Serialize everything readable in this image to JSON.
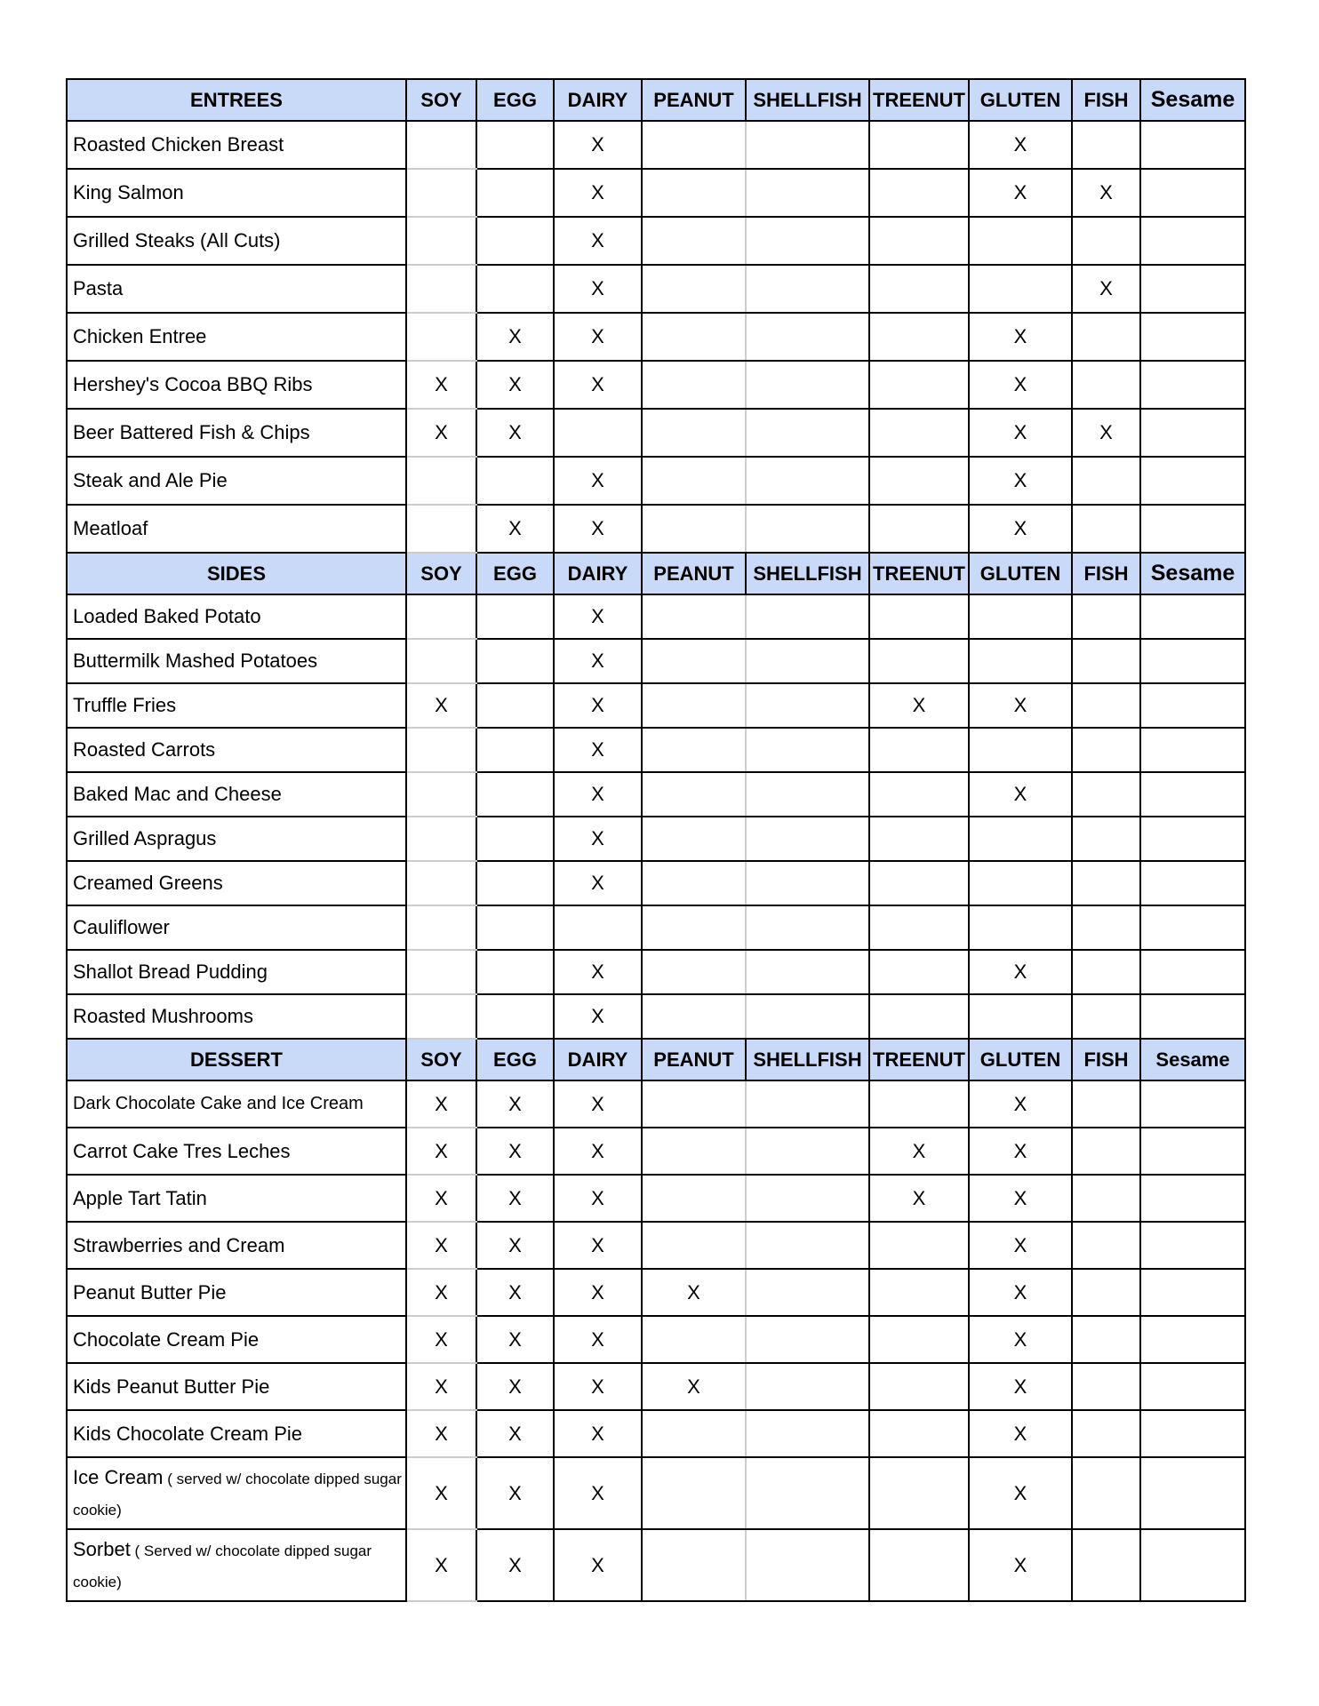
{
  "columns": [
    "SOY",
    "EGG",
    "DAIRY",
    "PEANUT",
    "SHELLFISH",
    "TREENUT",
    "GLUTEN",
    "FISH",
    "Sesame"
  ],
  "mark": "X",
  "sections": [
    {
      "id": "entrees",
      "title": "ENTREES",
      "rows": [
        {
          "name": "Roasted Chicken Breast",
          "marks": [
            "",
            "",
            "X",
            "",
            "",
            "",
            "X",
            "",
            ""
          ]
        },
        {
          "name": "King Salmon",
          "marks": [
            "",
            "",
            "X",
            "",
            "",
            "",
            "X",
            "X",
            ""
          ]
        },
        {
          "name": "Grilled Steaks (All Cuts)",
          "marks": [
            "",
            "",
            "X",
            "",
            "",
            "",
            "",
            "",
            ""
          ]
        },
        {
          "name": "Pasta",
          "marks": [
            "",
            "",
            "X",
            "",
            "",
            "",
            "",
            "X",
            ""
          ]
        },
        {
          "name": "Chicken Entree",
          "marks": [
            "",
            "X",
            "X",
            "",
            "",
            "",
            "X",
            "",
            ""
          ]
        },
        {
          "name": "Hershey's Cocoa BBQ Ribs",
          "marks": [
            "X",
            "X",
            "X",
            "",
            "",
            "",
            "X",
            "",
            ""
          ]
        },
        {
          "name": "Beer Battered Fish & Chips",
          "marks": [
            "X",
            "X",
            "",
            "",
            "",
            "",
            "X",
            "X",
            ""
          ]
        },
        {
          "name": "Steak and Ale Pie",
          "marks": [
            "",
            "",
            "X",
            "",
            "",
            "",
            "X",
            "",
            ""
          ]
        },
        {
          "name": "Meatloaf",
          "marks": [
            "",
            "X",
            "X",
            "",
            "",
            "",
            "X",
            "",
            ""
          ]
        }
      ]
    },
    {
      "id": "sides",
      "title": "SIDES",
      "rows": [
        {
          "name": "Loaded Baked Potato",
          "marks": [
            "",
            "",
            "X",
            "",
            "",
            "",
            "",
            "",
            ""
          ]
        },
        {
          "name": "Buttermilk Mashed Potatoes",
          "marks": [
            "",
            "",
            "X",
            "",
            "",
            "",
            "",
            "",
            ""
          ]
        },
        {
          "name": "Truffle Fries",
          "marks": [
            "X",
            "",
            "X",
            "",
            "",
            "X",
            "X",
            "",
            ""
          ]
        },
        {
          "name": "Roasted Carrots",
          "marks": [
            "",
            "",
            "X",
            "",
            "",
            "",
            "",
            "",
            ""
          ]
        },
        {
          "name": "Baked Mac and Cheese",
          "marks": [
            "",
            "",
            "X",
            "",
            "",
            "",
            "X",
            "",
            ""
          ]
        },
        {
          "name": "Grilled Aspragus",
          "marks": [
            "",
            "",
            "X",
            "",
            "",
            "",
            "",
            "",
            ""
          ]
        },
        {
          "name": "Creamed Greens",
          "marks": [
            "",
            "",
            "X",
            "",
            "",
            "",
            "",
            "",
            ""
          ]
        },
        {
          "name": "Cauliflower",
          "marks": [
            "",
            "",
            "",
            "",
            "",
            "",
            "",
            "",
            ""
          ]
        },
        {
          "name": "Shallot Bread Pudding",
          "marks": [
            "",
            "",
            "X",
            "",
            "",
            "",
            "X",
            "",
            ""
          ]
        },
        {
          "name": "Roasted Mushrooms",
          "marks": [
            "",
            "",
            "X",
            "",
            "",
            "",
            "",
            "",
            ""
          ]
        }
      ]
    },
    {
      "id": "dessert",
      "title": "DESSERT",
      "rows": [
        {
          "name": "Dark Chocolate Cake and Ice Cream",
          "marks": [
            "X",
            "X",
            "X",
            "",
            "",
            "",
            "X",
            "",
            ""
          ]
        },
        {
          "name": "Carrot Cake Tres Leches",
          "marks": [
            "X",
            "X",
            "X",
            "",
            "",
            "X",
            "X",
            "",
            ""
          ]
        },
        {
          "name": "Apple Tart Tatin",
          "marks": [
            "X",
            "X",
            "X",
            "",
            "",
            "X",
            "X",
            "",
            ""
          ]
        },
        {
          "name": "Strawberries and Cream",
          "marks": [
            "X",
            "X",
            "X",
            "",
            "",
            "",
            "X",
            "",
            ""
          ]
        },
        {
          "name": "Peanut Butter Pie",
          "marks": [
            "X",
            "X",
            "X",
            "X",
            "",
            "",
            "X",
            "",
            ""
          ]
        },
        {
          "name": "Chocolate Cream Pie",
          "marks": [
            "X",
            "X",
            "X",
            "",
            "",
            "",
            "X",
            "",
            ""
          ]
        },
        {
          "name": "Kids Peanut Butter Pie",
          "marks": [
            "X",
            "X",
            "X",
            "X",
            "",
            "",
            "X",
            "",
            ""
          ]
        },
        {
          "name": "Kids Chocolate Cream Pie",
          "marks": [
            "X",
            "X",
            "X",
            "",
            "",
            "",
            "X",
            "",
            ""
          ]
        },
        {
          "name": "Ice Cream",
          "note": " ( served w/ chocolate dipped sugar cookie)",
          "marks": [
            "X",
            "X",
            "X",
            "",
            "",
            "",
            "X",
            "",
            ""
          ]
        },
        {
          "name": "Sorbet",
          "note": " ( Served w/ chocolate dipped sugar cookie)",
          "marks": [
            "X",
            "X",
            "X",
            "",
            "",
            "",
            "X",
            "",
            ""
          ]
        }
      ]
    }
  ],
  "colors": {
    "header_bg": "#c9daf8",
    "border": "#000000"
  }
}
